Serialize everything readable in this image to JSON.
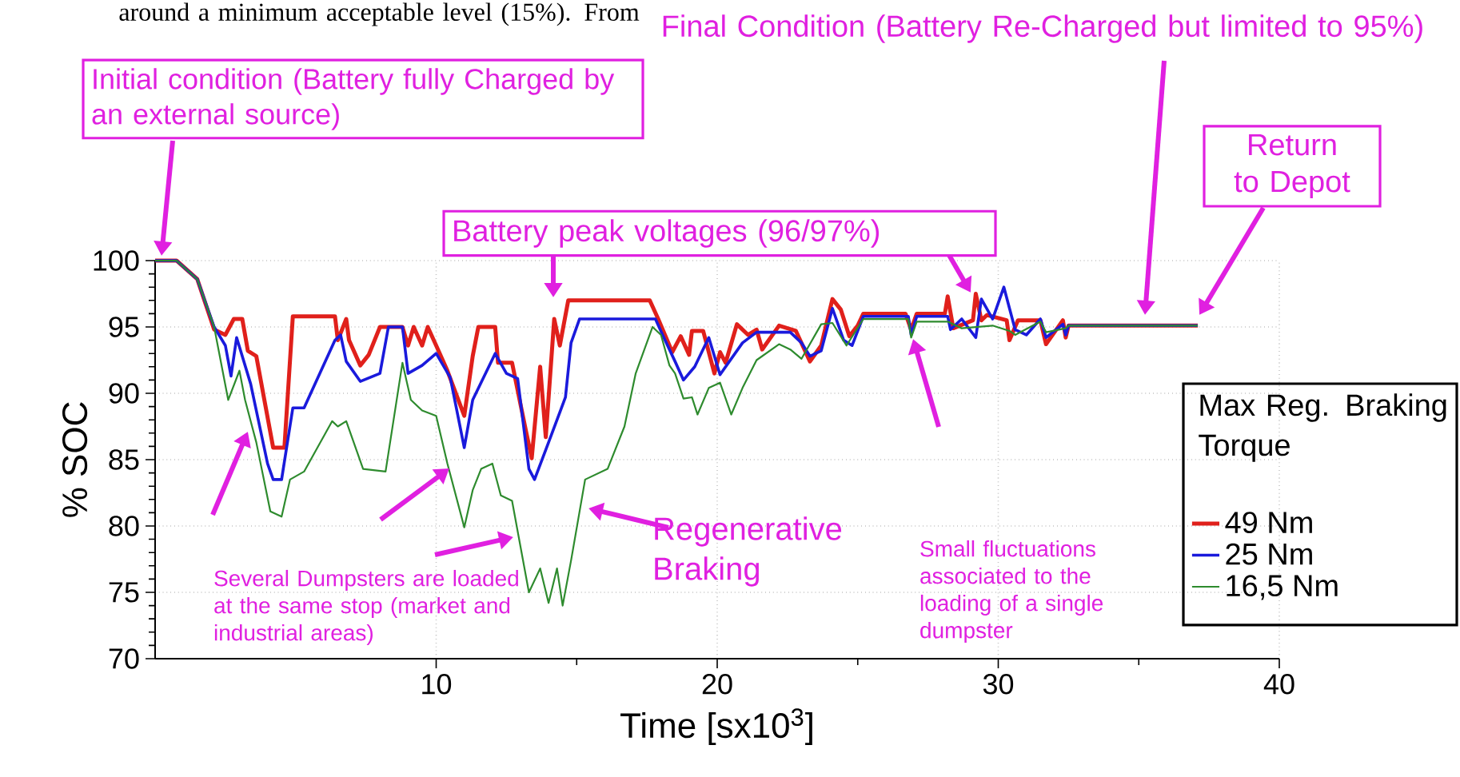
{
  "chart_data": {
    "type": "line",
    "xlabel": "Time [sx10$^{3}$]",
    "ylabel": "% SOC",
    "legend_title": "Max Reg. Braking Torque",
    "xlim": [
      0,
      40
    ],
    "ylim": [
      70,
      100
    ],
    "xticks": [
      10,
      20,
      30,
      40
    ],
    "yticks": [
      70,
      75,
      80,
      85,
      90,
      95,
      100
    ],
    "grid": true,
    "legend": "bottom right",
    "series": [
      {
        "name": "49 Nm",
        "color": "#e0201b",
        "x": [
          0,
          0.76,
          1.5,
          2.1,
          2.5,
          2.8,
          3.1,
          3.3,
          3.6,
          4.2,
          4.6,
          4.9,
          6.4,
          6.5,
          6.8,
          6.9,
          7.3,
          7.6,
          8,
          8.8,
          9,
          9.2,
          9.5,
          9.7,
          10,
          10.4,
          11,
          11.3,
          11.5,
          12.1,
          12.2,
          12.7,
          13.2,
          13.4,
          13.7,
          13.9,
          14.2,
          14.4,
          14.7,
          17.6,
          17.9,
          18.4,
          18.7,
          19,
          19.1,
          19.5,
          19.9,
          20.1,
          20.3,
          20.7,
          21.1,
          21.4,
          21.6,
          22.2,
          22.8,
          23.3,
          23.7,
          24.1,
          24.4,
          24.7,
          25,
          25.2,
          26.7,
          26.9,
          27.1,
          28.1,
          28.2,
          28.4,
          29.1,
          29.2,
          29.4,
          29.6,
          30.3,
          30.4,
          30.7,
          31.5,
          31.7,
          32.3,
          32.4,
          32.5,
          37.1
        ],
        "values": [
          100,
          100,
          98.6,
          94.8,
          94.4,
          95.6,
          95.6,
          93.2,
          92.8,
          85.9,
          85.9,
          95.8,
          95.8,
          94,
          95.6,
          94,
          92.1,
          92.9,
          95,
          95,
          93.6,
          95,
          93.6,
          95,
          93.6,
          91.7,
          88.3,
          92.8,
          95,
          95,
          92.3,
          92.3,
          87.1,
          85.1,
          92,
          86.7,
          95.6,
          93.6,
          97,
          97,
          95.6,
          93.1,
          94.3,
          92.9,
          94.7,
          94.7,
          91.5,
          93.1,
          92.3,
          95.2,
          94.4,
          94.8,
          93.3,
          95.1,
          94.7,
          92.4,
          93.6,
          97.1,
          96.3,
          94.3,
          95.1,
          96,
          96,
          94.8,
          96,
          96,
          97.3,
          94.9,
          95.5,
          97.5,
          95.5,
          95.9,
          95.5,
          94,
          95.5,
          95.5,
          93.7,
          95.5,
          94.2,
          95.1,
          95.1
        ]
      },
      {
        "name": "25 Nm",
        "color": "#1a1adc",
        "x": [
          0,
          0.76,
          1.5,
          2.1,
          2.5,
          2.7,
          2.9,
          3.4,
          4,
          4.2,
          4.5,
          4.9,
          5.3,
          6.4,
          6.6,
          6.8,
          7.3,
          8,
          8.3,
          8.8,
          9,
          9.5,
          10,
          10.5,
          11,
          11.3,
          12.1,
          12.5,
          12.9,
          13.3,
          13.5,
          14,
          14.6,
          14.8,
          15.1,
          17.8,
          18.1,
          18.5,
          18.8,
          19.2,
          19.7,
          20.1,
          20.5,
          20.9,
          21.4,
          22,
          22.6,
          23,
          23.3,
          23.7,
          24.1,
          24.5,
          24.8,
          25.2,
          26.8,
          26.9,
          27.1,
          28.2,
          28.3,
          28.7,
          29.2,
          29.4,
          29.8,
          30.2,
          30.4,
          30.6,
          31,
          31.5,
          31.7,
          32.3,
          32.4,
          32.5,
          37.1
        ],
        "values": [
          100,
          100,
          98.6,
          95,
          93.6,
          91.3,
          94.2,
          90.7,
          84.7,
          83.5,
          83.5,
          88.9,
          88.9,
          94,
          94.4,
          92.4,
          90.9,
          91.5,
          95,
          95,
          91.5,
          92.1,
          93,
          91.2,
          85.9,
          89.5,
          93,
          91.5,
          91.1,
          84.3,
          83.5,
          86.3,
          89.7,
          93.8,
          95.6,
          95.6,
          94.2,
          92.4,
          91,
          92,
          94.2,
          91.4,
          92.6,
          93.8,
          94.6,
          94.6,
          94.6,
          93.8,
          92.8,
          93.2,
          96.4,
          94,
          93.6,
          95.8,
          95.8,
          94.4,
          95.8,
          95.8,
          94.8,
          95.6,
          94.2,
          97.1,
          95.6,
          98,
          96.4,
          94.8,
          94.4,
          95.6,
          94.2,
          95.2,
          94.4,
          95.1,
          95.1
        ]
      },
      {
        "name": "16,5 Nm",
        "color": "#2e8b2e",
        "x": [
          0,
          0.76,
          1.5,
          2.1,
          2.6,
          3,
          3.2,
          3.6,
          4.1,
          4.5,
          4.8,
          5.3,
          6.3,
          6.5,
          6.8,
          7.4,
          8.2,
          8.8,
          9.1,
          9.5,
          10,
          10.4,
          11,
          11.3,
          11.6,
          12,
          12.3,
          12.7,
          13.3,
          13.7,
          14,
          14.3,
          14.5,
          14.8,
          15.3,
          16.1,
          16.7,
          17.1,
          17.7,
          18,
          18.3,
          18.5,
          18.8,
          19.1,
          19.3,
          19.7,
          20.1,
          20.5,
          20.9,
          21.4,
          22.2,
          22.6,
          23,
          23.7,
          24.1,
          24.6,
          25.2,
          26.8,
          26.9,
          27.1,
          28.2,
          28.7,
          29.8,
          30.4,
          30.6,
          31.5,
          31.7,
          32.4,
          32.5,
          37.1
        ],
        "values": [
          100,
          100,
          98.6,
          95,
          89.5,
          91.7,
          89.5,
          86.3,
          81.1,
          80.7,
          83.5,
          84.1,
          87.9,
          87.5,
          87.9,
          84.3,
          84.1,
          92.3,
          89.5,
          88.7,
          88.3,
          84.7,
          79.9,
          82.7,
          84.3,
          84.7,
          82.3,
          81.9,
          75,
          76.8,
          74.2,
          76.8,
          74,
          77.4,
          83.5,
          84.3,
          87.5,
          91.5,
          95,
          94.4,
          92.1,
          91.5,
          89.6,
          89.7,
          88.4,
          90.4,
          90.8,
          88.4,
          90.4,
          92.5,
          93.7,
          93.3,
          92.6,
          95.2,
          95.3,
          93.6,
          95.6,
          95.6,
          94.2,
          95.4,
          95.4,
          94.9,
          95.1,
          94.7,
          94.4,
          95.4,
          94.6,
          94.9,
          95.1,
          95.1
        ]
      }
    ],
    "annotations": [
      "around a minimum acceptable level (15%). From",
      "Final Condition (Battery Re-Charged but limited to 95%)",
      "Initial condition (Battery fully Charged by an external source)",
      "Battery peak voltages (96/97%)",
      "Return to Depot",
      "Several Dumpsters are loaded at the same stop (market and industrial areas)",
      "Regenerative Braking",
      "Small fluctuations associated to the loading of a single dumpster"
    ]
  }
}
